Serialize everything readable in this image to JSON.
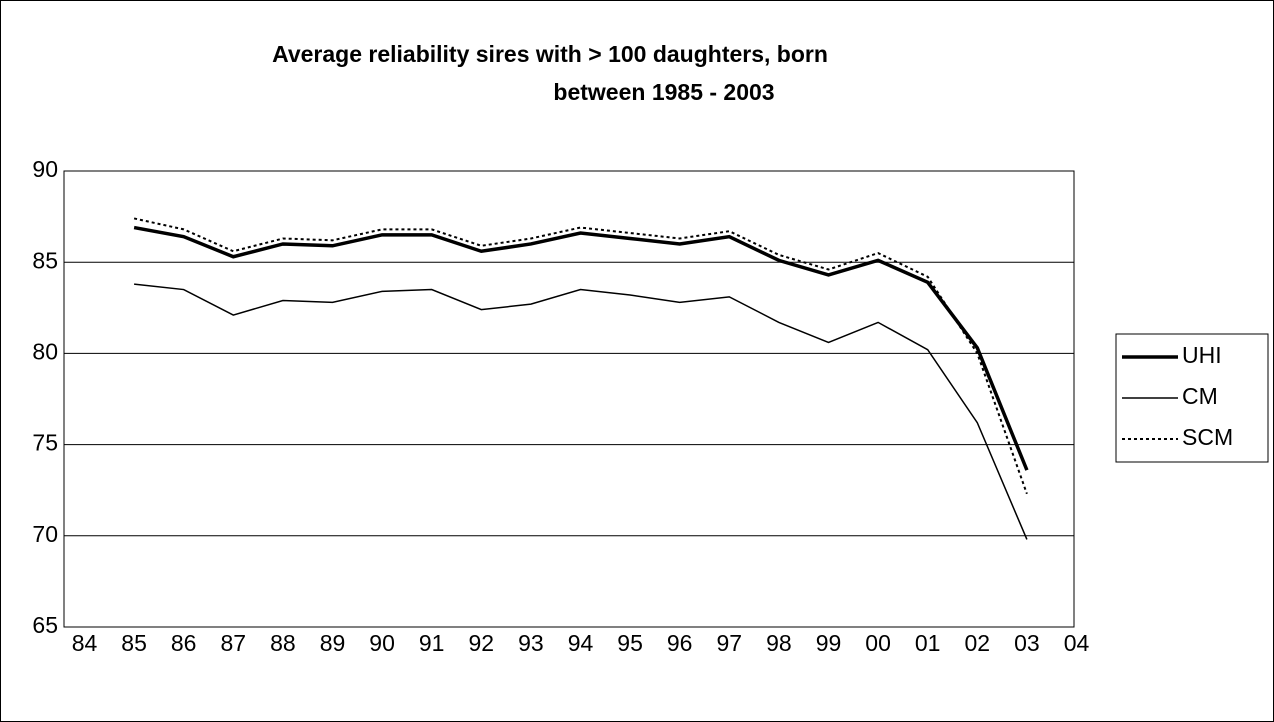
{
  "chart_data": {
    "type": "line",
    "title": [
      "Average reliability sires with > 100 daughters, born",
      "between 1985 - 2003"
    ],
    "categories": [
      "84",
      "85",
      "86",
      "87",
      "88",
      "89",
      "90",
      "91",
      "92",
      "93",
      "94",
      "95",
      "96",
      "97",
      "98",
      "99",
      "00",
      "01",
      "02",
      "03",
      "04"
    ],
    "series": [
      {
        "name": "UHI",
        "color": "#000000",
        "width": 3.5,
        "dash": "none",
        "values": [
          null,
          86.9,
          86.4,
          85.3,
          86.0,
          85.9,
          86.5,
          86.5,
          85.6,
          86.0,
          86.6,
          86.3,
          86.0,
          86.4,
          85.1,
          84.3,
          85.1,
          83.9,
          80.3,
          73.6,
          null
        ]
      },
      {
        "name": "CM",
        "color": "#000000",
        "width": 1.5,
        "dash": "none",
        "values": [
          null,
          83.8,
          83.5,
          82.1,
          82.9,
          82.8,
          83.4,
          83.5,
          82.4,
          82.7,
          83.5,
          83.2,
          82.8,
          83.1,
          81.7,
          80.6,
          81.7,
          80.2,
          76.2,
          69.8,
          null
        ]
      },
      {
        "name": "SCM",
        "color": "#000000",
        "width": 2,
        "dash": "3 3",
        "values": [
          null,
          87.4,
          86.8,
          85.6,
          86.3,
          86.2,
          86.8,
          86.8,
          85.9,
          86.3,
          86.9,
          86.6,
          86.3,
          86.7,
          85.4,
          84.6,
          85.5,
          84.2,
          80.0,
          72.3,
          null
        ]
      }
    ],
    "ylim": [
      65,
      90
    ],
    "yticks": [
      65,
      70,
      75,
      80,
      85,
      90
    ],
    "grid": true,
    "legend": "right"
  }
}
